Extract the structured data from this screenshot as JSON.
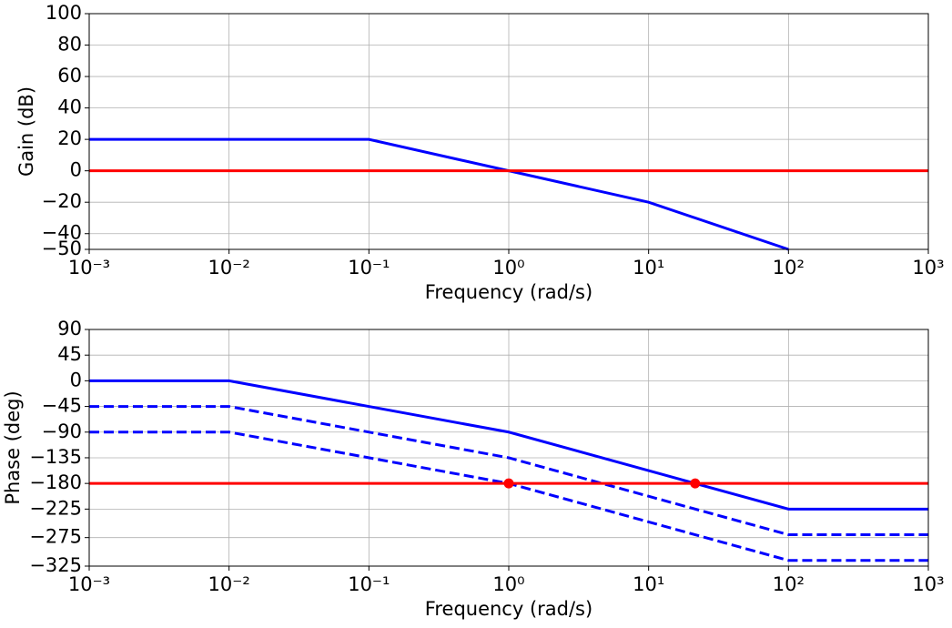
{
  "chart_data": [
    {
      "type": "line",
      "xscale": "log",
      "grid": true,
      "xlabel": "Frequency (rad/s)",
      "ylabel": "Gain (dB)",
      "xlim": [
        0.001,
        1000
      ],
      "xticks": [
        {
          "value": 0.001,
          "label": "10⁻³"
        },
        {
          "value": 0.01,
          "label": "10⁻²"
        },
        {
          "value": 0.1,
          "label": "10⁻¹"
        },
        {
          "value": 1,
          "label": "10⁰"
        },
        {
          "value": 10,
          "label": "10¹"
        },
        {
          "value": 100,
          "label": "10²"
        },
        {
          "value": 1000,
          "label": "10³"
        }
      ],
      "ylim": [
        -50,
        100
      ],
      "yticks": [
        100,
        80,
        60,
        40,
        20,
        0,
        {
          "value": -20,
          "label": "−20"
        },
        {
          "value": -40,
          "label": "−40"
        },
        {
          "value": -50,
          "label": "−50"
        }
      ],
      "series": [
        {
          "color": "#0000ff",
          "style": "solid",
          "x": [
            0.001,
            0.1,
            10,
            100
          ],
          "values": [
            20,
            20,
            -20,
            -50
          ]
        },
        {
          "color": "#ff0000",
          "style": "solid",
          "x": [
            0.001,
            1000
          ],
          "values": [
            0,
            0
          ]
        }
      ]
    },
    {
      "type": "line",
      "xscale": "log",
      "grid": true,
      "xlabel": "Frequency (rad/s)",
      "ylabel": "Phase (deg)",
      "xlim": [
        0.001,
        1000
      ],
      "xticks": [
        {
          "value": 0.001,
          "label": "10⁻³"
        },
        {
          "value": 0.01,
          "label": "10⁻²"
        },
        {
          "value": 0.1,
          "label": "10⁻¹"
        },
        {
          "value": 1,
          "label": "10⁰"
        },
        {
          "value": 10,
          "label": "10¹"
        },
        {
          "value": 100,
          "label": "10²"
        },
        {
          "value": 1000,
          "label": "10³"
        }
      ],
      "ylim": [
        -325,
        90
      ],
      "yticks": [
        90,
        45,
        0,
        {
          "value": -45,
          "label": "−45"
        },
        {
          "value": -90,
          "label": "−90"
        },
        {
          "value": -135,
          "label": "−135"
        },
        {
          "value": -180,
          "label": "−180"
        },
        {
          "value": -225,
          "label": "−225"
        },
        {
          "value": -275,
          "label": "−275"
        },
        {
          "value": -325,
          "label": "−325"
        }
      ],
      "series": [
        {
          "color": "#0000ff",
          "style": "solid",
          "x": [
            0.001,
            0.01,
            1,
            100,
            1000
          ],
          "values": [
            0,
            0,
            -90,
            -225,
            -225
          ]
        },
        {
          "color": "#0000ff",
          "style": "dash",
          "x": [
            0.001,
            0.01,
            1,
            100,
            1000
          ],
          "values": [
            -45,
            -45,
            -135,
            -270,
            -270
          ]
        },
        {
          "color": "#0000ff",
          "style": "dash",
          "x": [
            0.001,
            0.01,
            1,
            100,
            1000
          ],
          "values": [
            -90,
            -90,
            -180,
            -315,
            -315
          ]
        },
        {
          "color": "#ff0000",
          "style": "solid",
          "x": [
            0.001,
            1000
          ],
          "values": [
            -180,
            -180
          ]
        },
        {
          "color": "#ff0000",
          "style": "point",
          "x": [
            1,
            21.5
          ],
          "values": [
            -180,
            -180
          ]
        }
      ]
    }
  ]
}
